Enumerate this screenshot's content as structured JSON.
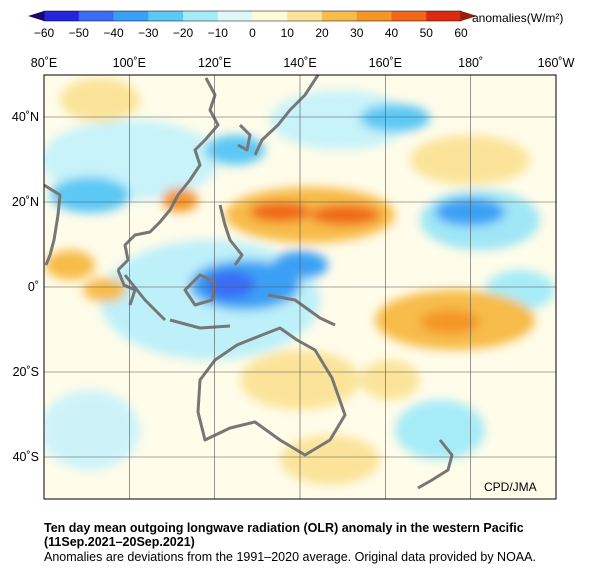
{
  "colorbar": {
    "unit_label": "anomalies(W/m²)",
    "ticks": [
      "−60",
      "−50",
      "−40",
      "−30",
      "−20",
      "−10",
      "0",
      "10",
      "20",
      "30",
      "40",
      "50",
      "60"
    ],
    "colors": [
      "#2424e0",
      "#3a6cf5",
      "#3aa0f5",
      "#5bc8f5",
      "#a6ecf8",
      "#e0f7f9",
      "#fffad8",
      "#fbe49a",
      "#f7bc4a",
      "#f59528",
      "#f06818",
      "#dd2a0e"
    ]
  },
  "map": {
    "lon_labels": [
      "80˚E",
      "100˚E",
      "120˚E",
      "140˚E",
      "160˚E",
      "180˚",
      "160˚W"
    ],
    "lat_labels": [
      "40˚N",
      "20˚N",
      "0˚",
      "20˚S",
      "40˚S"
    ]
  },
  "credit": "CPD/JMA",
  "title_line1": "Ten day mean outgoing longwave radiation (OLR) anomaly in the western Pacific",
  "title_line2": "(11Sep.2021–20Sep.2021)",
  "note": "Anomalies are deviations from the 1991–2020 average. Original data provided by NOAA."
}
